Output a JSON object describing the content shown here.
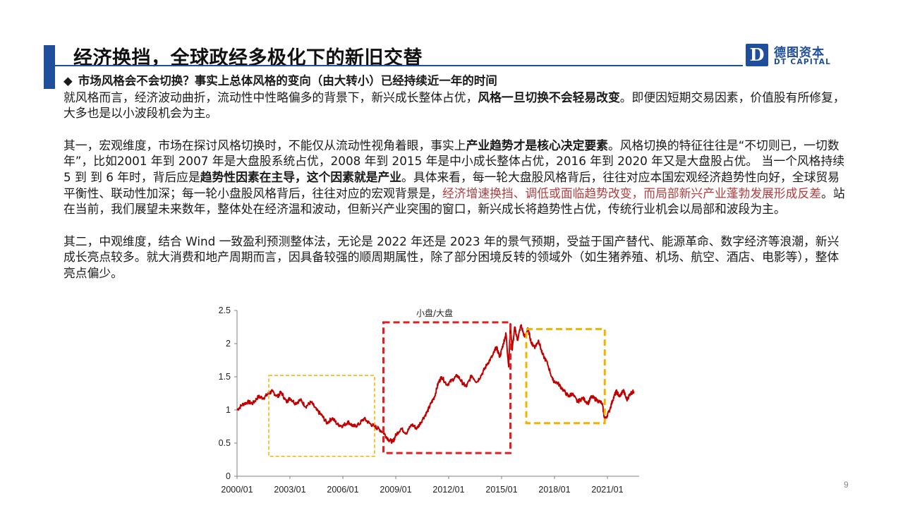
{
  "slide": {
    "title": "经济换挡，全球政经多极化下的新旧交替",
    "page_number": "9",
    "logo": {
      "mark": "D",
      "cn": "德图资本",
      "en": "DT CAPITAL"
    }
  },
  "content": {
    "bullet": "市场风格会不会切换？事实上总体风格的变向（由大转小）已经持续近一年的时间",
    "p1": {
      "t1": "就风格而言，经济波动曲折，流动性中性略偏多的背景下，新兴成长整体占优，",
      "b1": "风格一旦切换不会轻易改变",
      "t2": "。即便因短期交易因素，价值股有所修复，大多也是以小波段机会为主。"
    },
    "p2": {
      "t1": "其一，宏观维度，市场在探讨风格切换时，不能仅从流动性视角着眼，事实上",
      "b1": "产业趋势才是核心决定要素",
      "t2": "。风格切换的特征往往是“不切则已，一切数年”，比如2001 年到 2007 年是大盘股系统占优，2008 年到 2015 年是中小成长整体占优，2016 年到 2020 年又是大盘股占优。 当一个风格持续 5 到 到 6 年时，背后应是",
      "b2": "趋势性因素在主导，这个因素就是产业",
      "t3": "。具体来看，每一轮大盘股风格背后，往往对应本国宏观经济趋势性向好，全球贸易平衡性、联动性加深；每一轮小盘股风格背后，往往对应的宏观背景是，",
      "r1": "经济增速换挡、调低或面临趋势改变，而局部新兴产业蓬勃发展形成反差",
      "t4": "。站在当前，我们展望未来数年，整体处在经济温和波动，但新兴产业突围的窗口，新兴成长将趋势性占优，传统行业机会以局部和波段为主。"
    },
    "p3": "其二，中观维度，结合 Wind 一致盈利预测整体法，无论是 2022  年还是 2023 年的景气预期，受益于国产替代、能源革命、数字经济等浪潮，新兴成长亮点较多。就大消费和地产周期而言，因具备较强的顺周期属性，除了部分困境反转的领域外（如生猪养殖、机场、航空、酒店、电影等），整体亮点偏少。"
  },
  "colors": {
    "accent": "#1f4e9c",
    "series": "#c00000",
    "box_red": "#e02020",
    "box_yellow": "#f0b400",
    "highlight_text": "#b23c3c"
  },
  "chart_data": {
    "type": "line",
    "title": "小盘/大盘",
    "xlabel": "",
    "ylabel": "",
    "ylim": [
      0,
      2.5
    ],
    "yticks": [
      "0",
      "0.5",
      "1",
      "1.5",
      "2",
      "2.5"
    ],
    "xlim": [
      2000.0,
      2022.8
    ],
    "xticks": [
      {
        "label": "2000/01",
        "value": 2000.0
      },
      {
        "label": "2003/01",
        "value": 2003.0
      },
      {
        "label": "2006/01",
        "value": 2006.0
      },
      {
        "label": "2009/01",
        "value": 2009.0
      },
      {
        "label": "2012/01",
        "value": 2012.0
      },
      {
        "label": "2015/01",
        "value": 2015.0
      },
      {
        "label": "2018/01",
        "value": 2018.0
      },
      {
        "label": "2021/01",
        "value": 2021.0
      }
    ],
    "series": [
      {
        "name": "小盘/大盘",
        "points": [
          [
            2000.0,
            1.0
          ],
          [
            2000.3,
            1.08
          ],
          [
            2000.6,
            1.12
          ],
          [
            2000.9,
            1.1
          ],
          [
            2001.2,
            1.2
          ],
          [
            2001.5,
            1.18
          ],
          [
            2001.8,
            1.25
          ],
          [
            2002.0,
            1.28
          ],
          [
            2002.3,
            1.2
          ],
          [
            2002.5,
            1.27
          ],
          [
            2002.8,
            1.12
          ],
          [
            2003.0,
            1.18
          ],
          [
            2003.3,
            1.1
          ],
          [
            2003.6,
            1.15
          ],
          [
            2003.9,
            1.05
          ],
          [
            2004.2,
            1.12
          ],
          [
            2004.5,
            1.0
          ],
          [
            2004.8,
            0.92
          ],
          [
            2005.1,
            0.8
          ],
          [
            2005.4,
            0.88
          ],
          [
            2005.7,
            0.78
          ],
          [
            2006.0,
            0.76
          ],
          [
            2006.3,
            0.82
          ],
          [
            2006.6,
            0.75
          ],
          [
            2006.9,
            0.78
          ],
          [
            2007.2,
            0.87
          ],
          [
            2007.5,
            0.8
          ],
          [
            2007.8,
            0.75
          ],
          [
            2008.0,
            0.72
          ],
          [
            2008.3,
            0.66
          ],
          [
            2008.6,
            0.55
          ],
          [
            2008.85,
            0.52
          ],
          [
            2009.0,
            0.62
          ],
          [
            2009.3,
            0.72
          ],
          [
            2009.6,
            0.65
          ],
          [
            2009.9,
            0.78
          ],
          [
            2010.2,
            0.72
          ],
          [
            2010.5,
            0.85
          ],
          [
            2010.8,
            0.98
          ],
          [
            2011.0,
            1.1
          ],
          [
            2011.2,
            1.2
          ],
          [
            2011.4,
            1.4
          ],
          [
            2011.6,
            1.5
          ],
          [
            2011.9,
            1.38
          ],
          [
            2012.2,
            1.45
          ],
          [
            2012.5,
            1.52
          ],
          [
            2012.8,
            1.4
          ],
          [
            2013.0,
            1.35
          ],
          [
            2013.3,
            1.52
          ],
          [
            2013.6,
            1.42
          ],
          [
            2013.9,
            1.55
          ],
          [
            2014.2,
            1.7
          ],
          [
            2014.5,
            1.82
          ],
          [
            2014.7,
            1.95
          ],
          [
            2014.9,
            1.8
          ],
          [
            2015.1,
            2.0
          ],
          [
            2015.25,
            2.15
          ],
          [
            2015.4,
            1.65
          ],
          [
            2015.5,
            2.3
          ],
          [
            2015.6,
            1.9
          ],
          [
            2015.75,
            2.25
          ],
          [
            2015.9,
            2.05
          ],
          [
            2016.1,
            2.28
          ],
          [
            2016.3,
            2.1
          ],
          [
            2016.5,
            2.22
          ],
          [
            2016.7,
            2.0
          ],
          [
            2016.9,
            1.95
          ],
          [
            2017.1,
            2.05
          ],
          [
            2017.3,
            1.85
          ],
          [
            2017.6,
            1.7
          ],
          [
            2017.9,
            1.45
          ],
          [
            2018.2,
            1.4
          ],
          [
            2018.5,
            1.3
          ],
          [
            2018.8,
            1.2
          ],
          [
            2019.0,
            1.25
          ],
          [
            2019.3,
            1.12
          ],
          [
            2019.6,
            1.18
          ],
          [
            2019.9,
            1.1
          ],
          [
            2020.1,
            1.2
          ],
          [
            2020.4,
            1.15
          ],
          [
            2020.7,
            1.1
          ],
          [
            2020.85,
            0.85
          ],
          [
            2021.1,
            0.98
          ],
          [
            2021.3,
            1.15
          ],
          [
            2021.5,
            1.28
          ],
          [
            2021.7,
            1.2
          ],
          [
            2021.9,
            1.3
          ],
          [
            2022.1,
            1.15
          ],
          [
            2022.3,
            1.25
          ],
          [
            2022.5,
            1.28
          ]
        ]
      }
    ],
    "annotations": [
      {
        "type": "box",
        "style": "yellow-dashed",
        "x0": 2001.8,
        "x1": 2007.8,
        "y0": 0.3,
        "y1": 1.52
      },
      {
        "type": "box",
        "style": "red-dashed",
        "x0": 2008.3,
        "x1": 2015.5,
        "y0": 0.35,
        "y1": 2.32
      },
      {
        "type": "box",
        "style": "yellow-dashed",
        "x0": 2016.4,
        "x1": 2020.85,
        "y0": 0.8,
        "y1": 2.22
      }
    ]
  }
}
